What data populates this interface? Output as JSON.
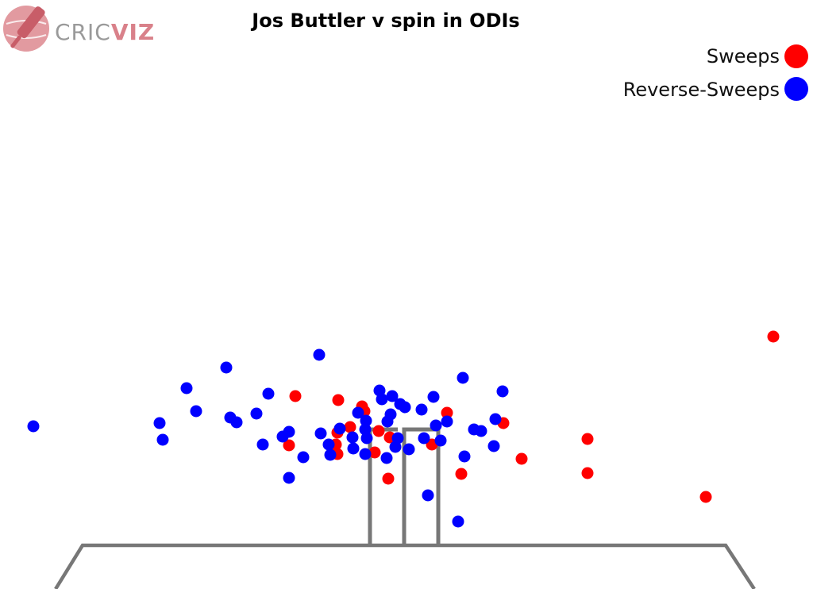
{
  "brand": {
    "logo_left": "CRIC",
    "logo_right": "VIZ",
    "logo_color": "#d9818a",
    "logo_left_color": "#9a9a9a"
  },
  "chart_data": {
    "type": "scatter",
    "title": "Jos Buttler v spin in ODIs",
    "xlabel": "",
    "ylabel": "",
    "grid": false,
    "legend": "top-right",
    "colors": {
      "pitch": "#777777",
      "stumps": "#777777"
    },
    "series": [
      {
        "name": "Sweeps",
        "color": "#ff0000",
        "points": [
          [
            372,
            499
          ],
          [
            426,
            504
          ],
          [
            456,
            512
          ],
          [
            459,
            518
          ],
          [
            563,
            520
          ],
          [
            634,
            533
          ],
          [
            441,
            538
          ],
          [
            425,
            545
          ],
          [
            477,
            543
          ],
          [
            491,
            551
          ],
          [
            423,
            560
          ],
          [
            364,
            561
          ],
          [
            544,
            560
          ],
          [
            425,
            572
          ],
          [
            472,
            570
          ],
          [
            740,
            553
          ],
          [
            657,
            578
          ],
          [
            740,
            596
          ],
          [
            581,
            597
          ],
          [
            489,
            603
          ],
          [
            889,
            626
          ],
          [
            974,
            424
          ]
        ]
      },
      {
        "name": "Reverse-Sweeps",
        "color": "#0000ff",
        "points": [
          [
            402,
            447
          ],
          [
            285,
            463
          ],
          [
            583,
            476
          ],
          [
            235,
            489
          ],
          [
            338,
            496
          ],
          [
            478,
            492
          ],
          [
            481,
            503
          ],
          [
            494,
            499
          ],
          [
            504,
            509
          ],
          [
            510,
            513
          ],
          [
            546,
            500
          ],
          [
            633,
            493
          ],
          [
            247,
            518
          ],
          [
            323,
            521
          ],
          [
            451,
            520
          ],
          [
            492,
            522
          ],
          [
            531,
            516
          ],
          [
            201,
            533
          ],
          [
            290,
            526
          ],
          [
            298,
            532
          ],
          [
            461,
            530
          ],
          [
            488,
            531
          ],
          [
            563,
            531
          ],
          [
            624,
            528
          ],
          [
            42,
            537
          ],
          [
            205,
            554
          ],
          [
            356,
            550
          ],
          [
            364,
            544
          ],
          [
            404,
            546
          ],
          [
            428,
            540
          ],
          [
            460,
            541
          ],
          [
            549,
            536
          ],
          [
            597,
            541
          ],
          [
            606,
            543
          ],
          [
            331,
            560
          ],
          [
            444,
            551
          ],
          [
            462,
            552
          ],
          [
            501,
            552
          ],
          [
            534,
            552
          ],
          [
            555,
            555
          ],
          [
            498,
            563
          ],
          [
            414,
            560
          ],
          [
            445,
            565
          ],
          [
            515,
            566
          ],
          [
            622,
            562
          ],
          [
            382,
            576
          ],
          [
            416,
            573
          ],
          [
            460,
            572
          ],
          [
            487,
            577
          ],
          [
            585,
            575
          ],
          [
            364,
            602
          ],
          [
            539,
            624
          ],
          [
            577,
            657
          ]
        ]
      }
    ]
  }
}
